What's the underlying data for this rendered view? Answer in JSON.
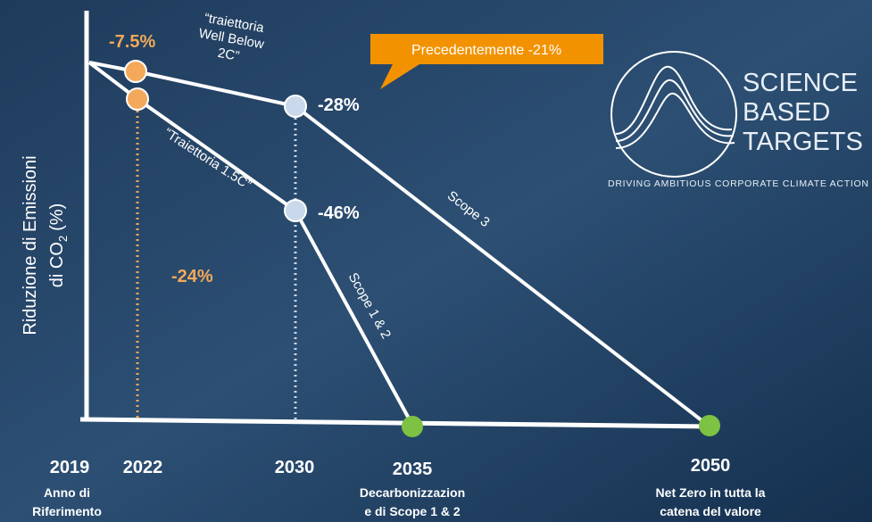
{
  "y_axis_label": {
    "line1": "Riduzione di Emissioni",
    "line2": "di CO",
    "subscript": "2",
    "suffix": "(%)"
  },
  "annotations": {
    "p2022_top": "-7.5%",
    "p2022_drop": "-24%",
    "wb2c": [
      "“traiettoria",
      "Well Below",
      "2C”"
    ],
    "t15": "“Traiettoria 1.5C”",
    "p2030_top": "-28%",
    "p2030_bottom": "-46%",
    "callout": "Precedentemente -21%",
    "scope3": "Scope 3",
    "scope12": "Scope 1 & 2"
  },
  "years": [
    "2019",
    "2022",
    "2030",
    "2035",
    "2050"
  ],
  "year_notes": {
    "2019": [
      "Anno di",
      "Riferimento"
    ],
    "2035": [
      "Decarbonizzazion",
      "e di Scope 1 & 2"
    ],
    "2050": [
      "Net Zero in tutta la",
      "catena del valore"
    ]
  },
  "logo": {
    "line1": "SCIENCE",
    "line2": "BASED",
    "line3": "TARGETS",
    "tagline": "DRIVING AMBITIOUS CORPORATE CLIMATE ACTION"
  }
}
